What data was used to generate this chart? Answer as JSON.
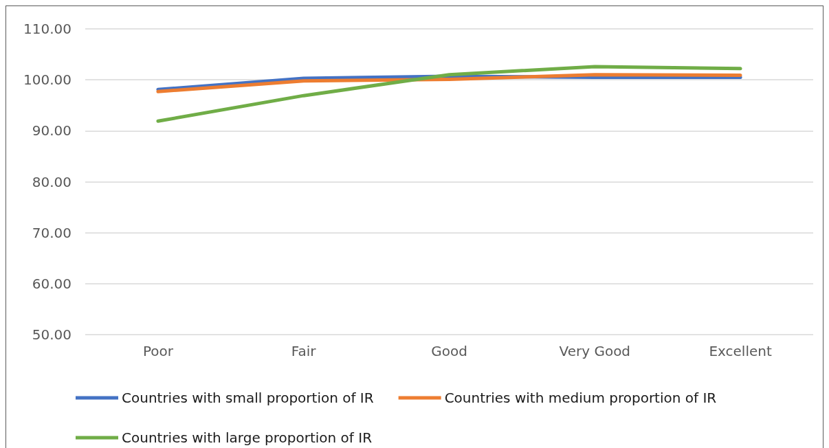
{
  "chart_data": {
    "type": "line",
    "categories": [
      "Poor",
      "Fair",
      "Good",
      "Very Good",
      "Excellent"
    ],
    "series": [
      {
        "name": "Countries with small proportion of IR",
        "color": "#4472c4",
        "values": [
          98.1,
          100.3,
          100.7,
          100.5,
          100.5
        ]
      },
      {
        "name": "Countries with medium proportion of IR",
        "color": "#ed7d31",
        "values": [
          97.7,
          99.8,
          100.1,
          101.0,
          100.9
        ]
      },
      {
        "name": "Countries with large proportion of IR",
        "color": "#70ad47",
        "values": [
          91.9,
          96.9,
          101.0,
          102.6,
          102.2
        ]
      }
    ],
    "ylim": [
      50,
      110
    ],
    "yticks": [
      {
        "value": 50,
        "label": "50.00"
      },
      {
        "value": 60,
        "label": "60.00"
      },
      {
        "value": 70,
        "label": "70.00"
      },
      {
        "value": 80,
        "label": "80.00"
      },
      {
        "value": 90,
        "label": "90.00"
      },
      {
        "value": 100,
        "label": "100.00"
      },
      {
        "value": 110,
        "label": "110.00"
      }
    ],
    "grid": "y",
    "legend": "bottom",
    "marker": "none",
    "line_style": "solid"
  }
}
